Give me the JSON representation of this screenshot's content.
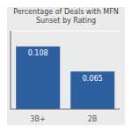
{
  "chart_data": {
    "type": "bar",
    "title": "Percentage of Deals with MFN Sunset by Rating",
    "categories": [
      "3B+",
      "2B"
    ],
    "values": [
      0.108,
      0.065
    ],
    "color": "#2e5f9e",
    "ylim": [
      0,
      0.135
    ],
    "yticks": [
      0,
      0.02,
      0.04,
      0.06,
      0.08,
      0.1,
      0.12
    ],
    "grid": true,
    "data_labels": true,
    "tick_labels": "x"
  }
}
